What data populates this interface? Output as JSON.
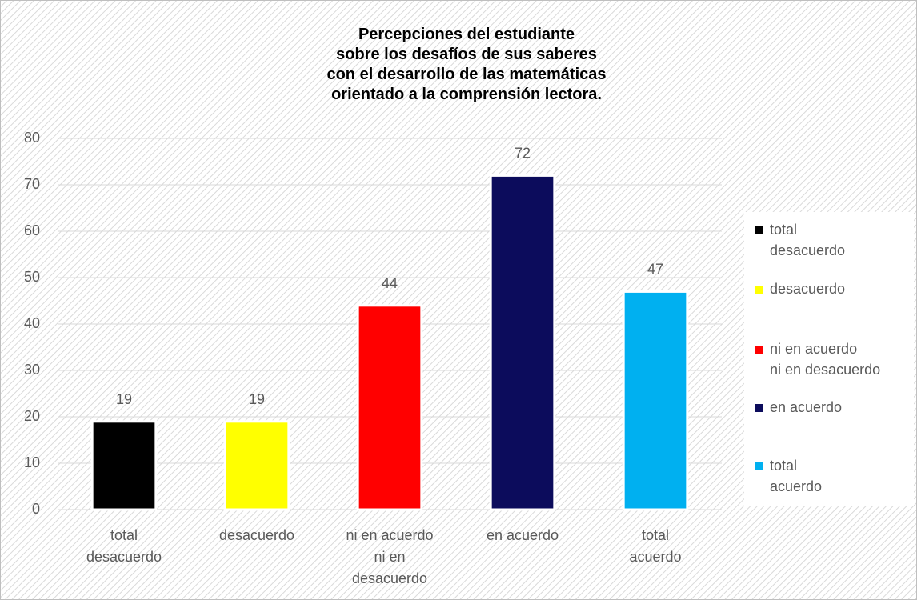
{
  "chart_data": {
    "type": "bar",
    "title": "Percepciones del estudiante\nsobre los desafíos de sus saberes\ncon el desarrollo de las matemáticas\norientado a la comprensión lectora.",
    "categories": [
      "total\ndesacuerdo",
      "desacuerdo",
      "ni en acuerdo\nni en\ndesacuerdo",
      "en acuerdo",
      "total\nacuerdo"
    ],
    "legend": [
      "total\ndesacuerdo",
      "desacuerdo",
      "ni en acuerdo\nni en desacuerdo",
      "en acuerdo",
      "total\nacuerdo"
    ],
    "values": [
      19,
      19,
      44,
      72,
      47
    ],
    "colors": [
      "#000000",
      "#ffff00",
      "#ff0000",
      "#0c0c5c",
      "#00b0f0"
    ],
    "ylim": [
      0,
      80
    ],
    "yticks": [
      0,
      10,
      20,
      30,
      40,
      50,
      60,
      70,
      80
    ],
    "grid": true,
    "legend_position": "right"
  }
}
